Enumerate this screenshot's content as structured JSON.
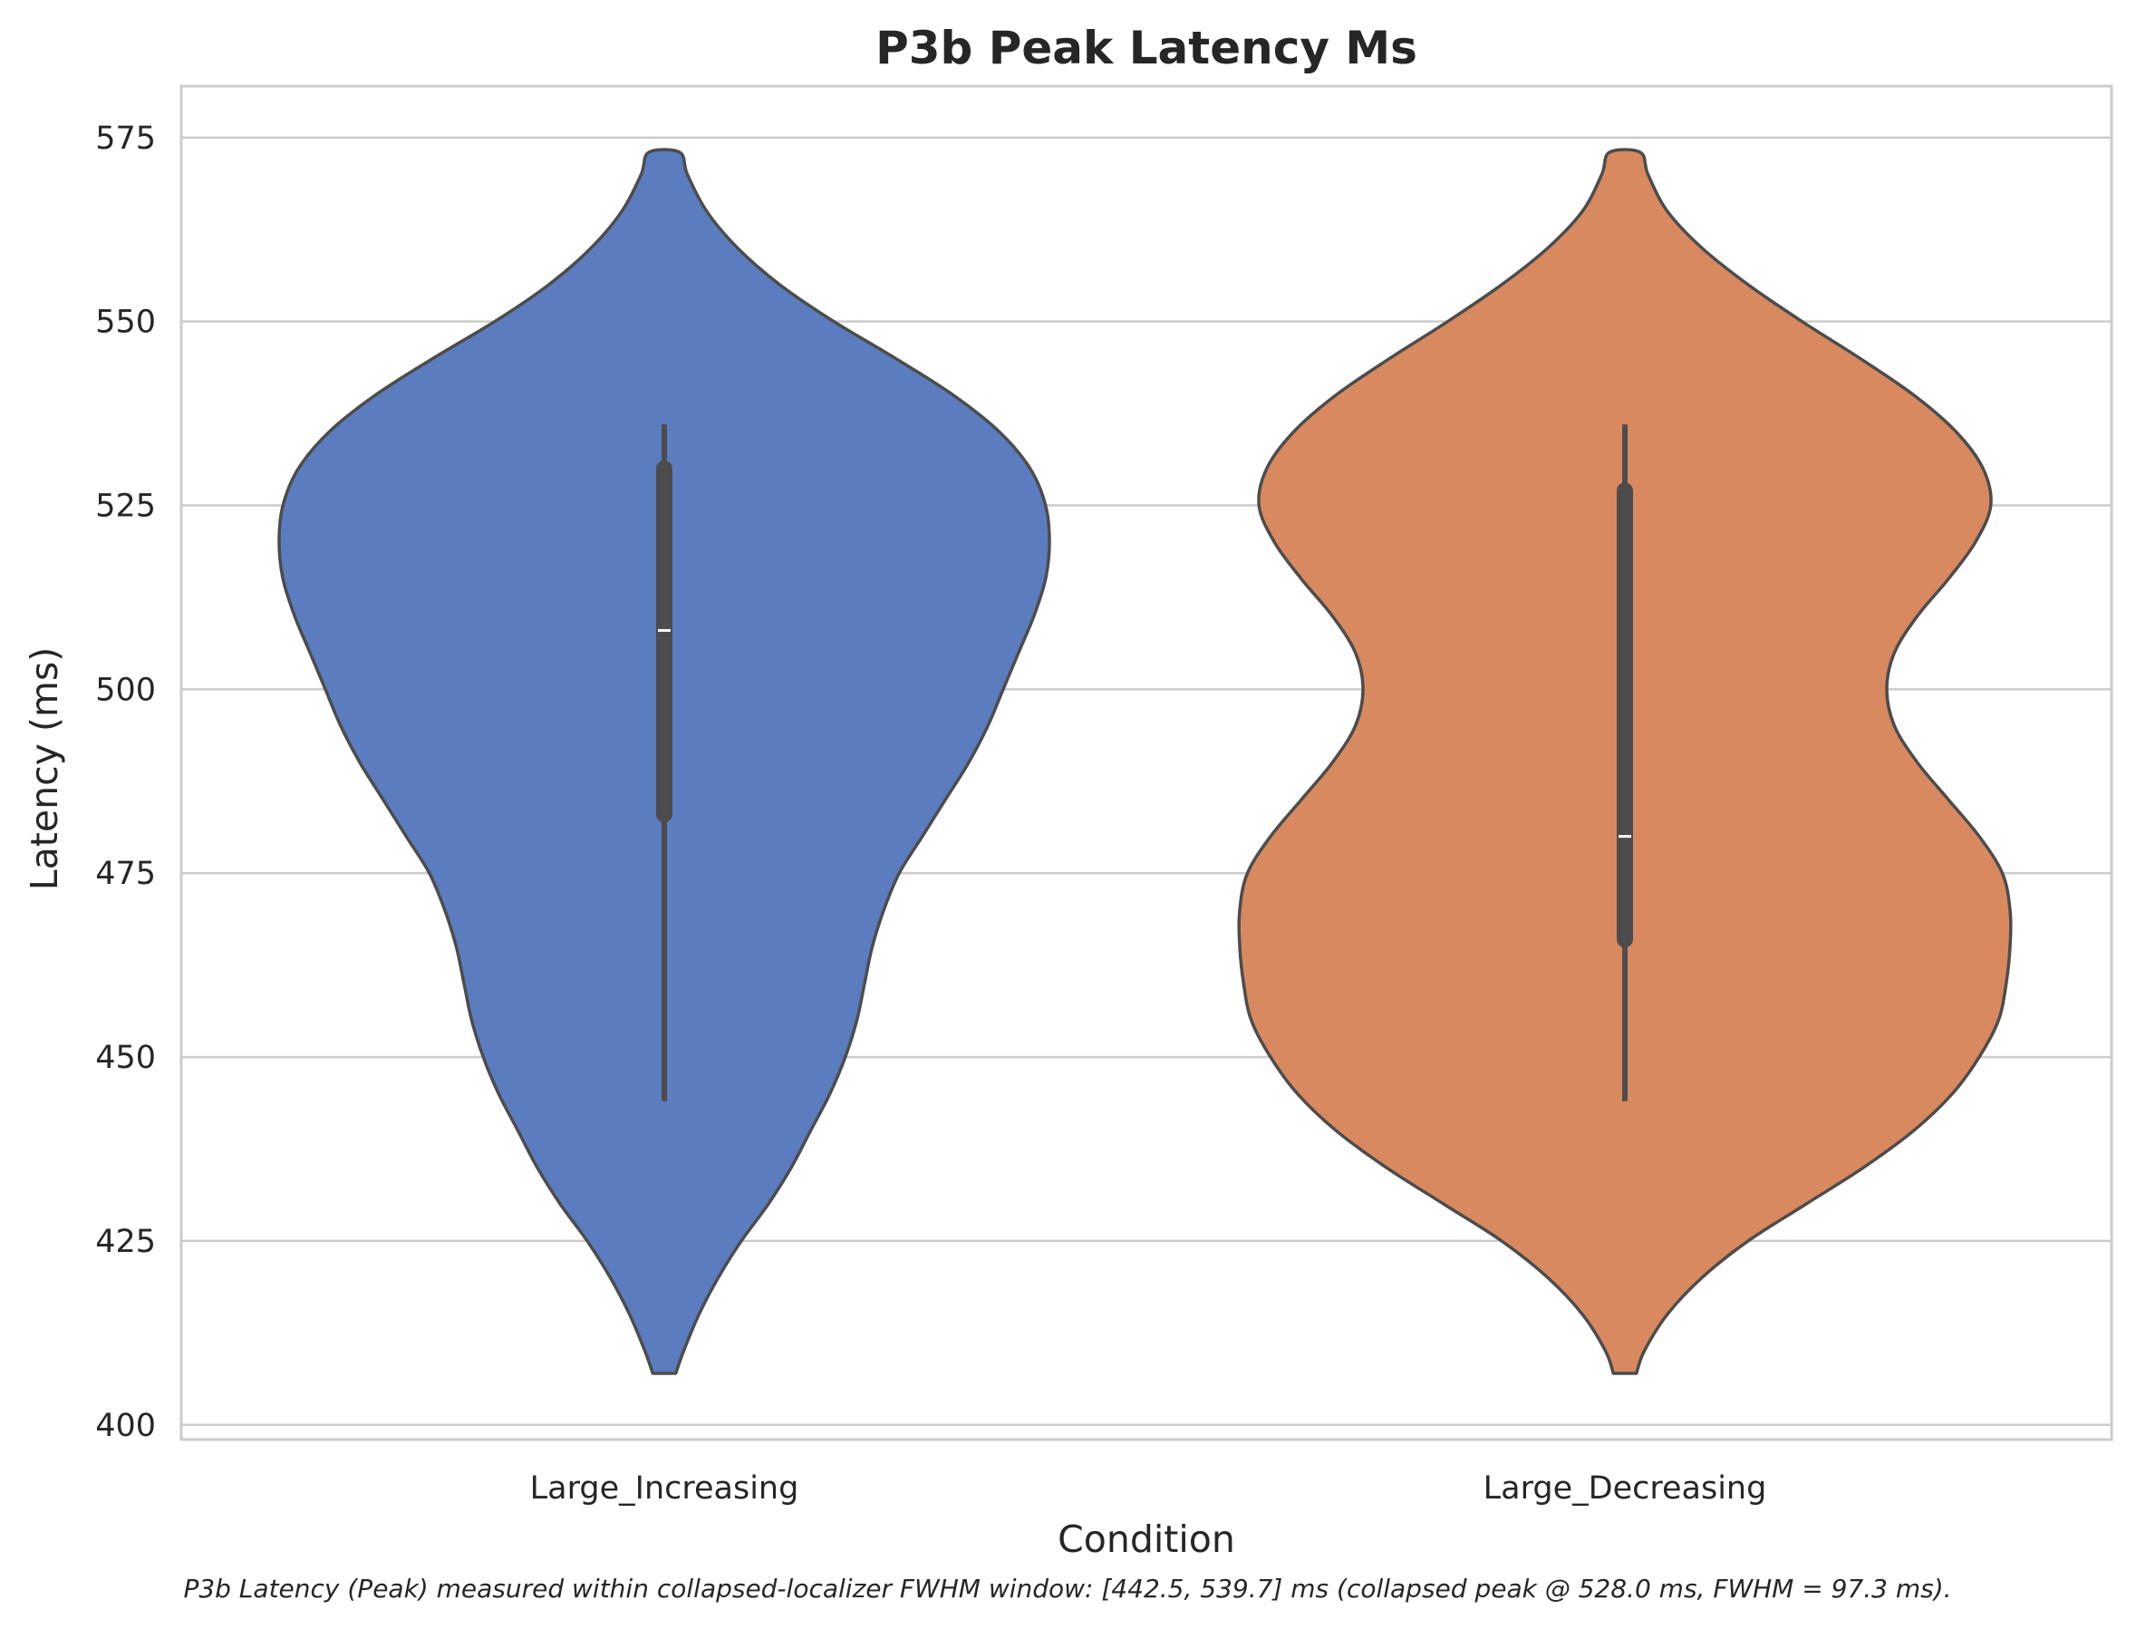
{
  "chart_data": {
    "type": "violin",
    "title": "P3b Peak Latency Ms",
    "xlabel": "Condition",
    "ylabel": "Latency (ms)",
    "ylim": [
      398,
      582
    ],
    "yticks": [
      400,
      425,
      450,
      475,
      500,
      525,
      550,
      575
    ],
    "grid": "horizontal",
    "categories": [
      "Large_Increasing",
      "Large_Decreasing"
    ],
    "colors": [
      "#5b7dbf",
      "#d8895f"
    ],
    "edge_color": "#4c4c4c",
    "violins": [
      {
        "category": "Large_Increasing",
        "min": 444,
        "q1": 483,
        "median": 508,
        "q3": 530,
        "max": 536,
        "kde_range": [
          407,
          573
        ],
        "profile": [
          [
            407,
            0.03
          ],
          [
            410,
            0.05
          ],
          [
            415,
            0.09
          ],
          [
            420,
            0.14
          ],
          [
            425,
            0.2
          ],
          [
            430,
            0.27
          ],
          [
            435,
            0.33
          ],
          [
            440,
            0.38
          ],
          [
            445,
            0.43
          ],
          [
            450,
            0.47
          ],
          [
            455,
            0.5
          ],
          [
            460,
            0.52
          ],
          [
            465,
            0.54
          ],
          [
            470,
            0.57
          ],
          [
            475,
            0.61
          ],
          [
            480,
            0.67
          ],
          [
            485,
            0.73
          ],
          [
            490,
            0.79
          ],
          [
            495,
            0.84
          ],
          [
            500,
            0.88
          ],
          [
            505,
            0.92
          ],
          [
            510,
            0.96
          ],
          [
            515,
            0.99
          ],
          [
            520,
            1.0
          ],
          [
            525,
            0.99
          ],
          [
            530,
            0.95
          ],
          [
            535,
            0.87
          ],
          [
            540,
            0.75
          ],
          [
            545,
            0.6
          ],
          [
            550,
            0.44
          ],
          [
            555,
            0.3
          ],
          [
            560,
            0.19
          ],
          [
            565,
            0.11
          ],
          [
            570,
            0.06
          ],
          [
            573,
            0.04
          ]
        ]
      },
      {
        "category": "Large_Decreasing",
        "min": 444,
        "q1": 466,
        "median": 480,
        "q3": 527,
        "max": 536,
        "kde_range": [
          407,
          573
        ],
        "profile": [
          [
            407,
            0.03
          ],
          [
            410,
            0.05
          ],
          [
            415,
            0.11
          ],
          [
            420,
            0.2
          ],
          [
            425,
            0.32
          ],
          [
            430,
            0.47
          ],
          [
            435,
            0.62
          ],
          [
            440,
            0.75
          ],
          [
            445,
            0.85
          ],
          [
            450,
            0.92
          ],
          [
            455,
            0.97
          ],
          [
            460,
            0.99
          ],
          [
            465,
            1.0
          ],
          [
            470,
            1.0
          ],
          [
            475,
            0.98
          ],
          [
            480,
            0.92
          ],
          [
            485,
            0.84
          ],
          [
            490,
            0.76
          ],
          [
            495,
            0.7
          ],
          [
            500,
            0.68
          ],
          [
            505,
            0.7
          ],
          [
            510,
            0.76
          ],
          [
            515,
            0.84
          ],
          [
            520,
            0.91
          ],
          [
            525,
            0.95
          ],
          [
            530,
            0.93
          ],
          [
            535,
            0.86
          ],
          [
            540,
            0.75
          ],
          [
            545,
            0.61
          ],
          [
            550,
            0.46
          ],
          [
            555,
            0.32
          ],
          [
            560,
            0.2
          ],
          [
            565,
            0.11
          ],
          [
            570,
            0.06
          ],
          [
            573,
            0.04
          ]
        ]
      }
    ],
    "caption": "P3b Latency (Peak) measured within collapsed-localizer FWHM window: [442.5, 539.7] ms (collapsed peak @ 528.0 ms, FWHM = 97.3 ms)."
  }
}
